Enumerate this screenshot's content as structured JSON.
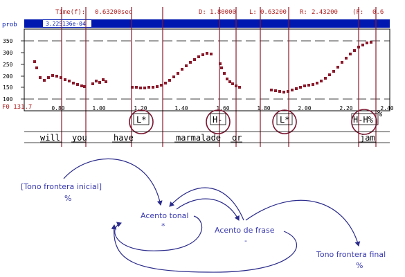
{
  "readout": {
    "time_label": "Time(f):",
    "time_value": "0.63200sec",
    "d_label": "D:",
    "d_value": "1.80000",
    "l_label": "L:",
    "l_value": "0.63200",
    "r_label": "R:",
    "r_value": "2.43200",
    "f_label": "(F:",
    "f_value": "0.6"
  },
  "prob_bar": {
    "label": "prob",
    "value": "3.225136e-04"
  },
  "pitch_track": {
    "y_ticks": [
      "350",
      "300",
      "250",
      "200",
      "150",
      "100"
    ],
    "x_ticks": [
      "0.80",
      "1.00",
      "1.20",
      "1.40",
      "1.60",
      "1.80",
      "2.00",
      "2.20",
      "2.40"
    ],
    "corner_label": "F0 131.7",
    "right_edge_label": "%",
    "colors": {
      "track": "#8b1a2b",
      "frame": "#000000",
      "bar": "#0018b0",
      "tick_text": "#000000",
      "label_text": "#b22222"
    }
  },
  "tone_labels": [
    "L*",
    "H-",
    "L*",
    "H-H%"
  ],
  "words": [
    "will",
    "you",
    "have",
    "marmalade",
    "or",
    "jam"
  ],
  "diagram": {
    "initial_boundary_tone": {
      "text": "[Tono frontera inicial]",
      "symbol": "%"
    },
    "pitch_accent": {
      "text": "Acento tonal",
      "symbol": "*"
    },
    "phrase_accent": {
      "text": "Acento de frase",
      "symbol": "-"
    },
    "final_boundary_tone": {
      "text": "Tono frontera final",
      "symbol": "%"
    },
    "colors": {
      "text": "#3a3ab0",
      "arrows": "#2b2b8c"
    }
  }
}
